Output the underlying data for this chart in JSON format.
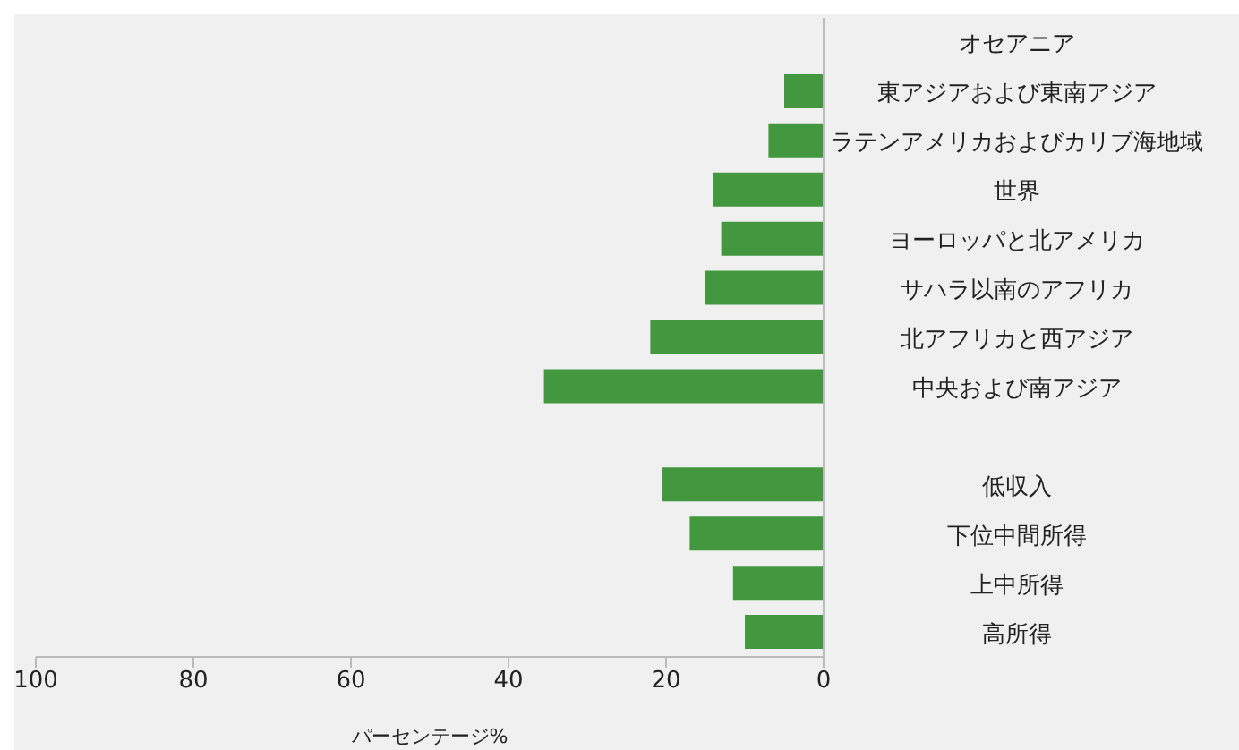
{
  "chart_data": {
    "type": "bar",
    "orientation": "horizontal",
    "xlabel": "パーセンテージ%",
    "categories": [
      "オセアニア",
      "東アジアおよび東南アジア",
      "ラテンアメリカおよびカリブ海地域",
      "世界",
      "ヨーロッパと北アメリカ",
      "サハラ以南のアフリカ",
      "北アフリカと西アジア",
      "中央および南アジア",
      null,
      "低収入",
      "下位中間所得",
      "上中所得",
      "高所得"
    ],
    "values": [
      null,
      5,
      7,
      14,
      13,
      15,
      22,
      35.5,
      null,
      20.5,
      17,
      11.5,
      10
    ],
    "color": "#43983f",
    "xlim": [
      100,
      0
    ],
    "xticks": [
      100,
      80,
      60,
      40,
      20,
      0
    ]
  }
}
